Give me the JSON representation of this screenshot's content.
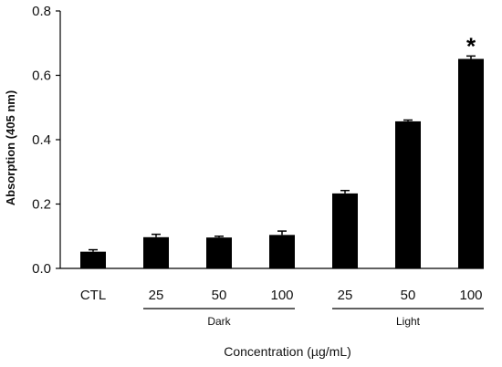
{
  "chart_data": {
    "type": "bar",
    "categories": [
      "CTL",
      "25",
      "50",
      "100",
      "25",
      "50",
      "100"
    ],
    "values": [
      0.052,
      0.097,
      0.096,
      0.104,
      0.233,
      0.457,
      0.651
    ],
    "errors": [
      0.006,
      0.009,
      0.004,
      0.012,
      0.009,
      0.004,
      0.009
    ],
    "groups": [
      {
        "label": "Dark",
        "categories": [
          1,
          2,
          3
        ]
      },
      {
        "label": "Light",
        "categories": [
          4,
          5,
          6
        ]
      }
    ],
    "annotations": [
      {
        "category": 6,
        "text": "*"
      }
    ],
    "ylabel": "Absorption (405 nm)",
    "xlabel": "Concentration (µg/mL)",
    "ylim": [
      0,
      0.8
    ],
    "yticks": [
      "0.0",
      "0.2",
      "0.4",
      "0.6",
      "0.8"
    ],
    "bar_color": "#000000",
    "grid": false,
    "legend": "none"
  }
}
